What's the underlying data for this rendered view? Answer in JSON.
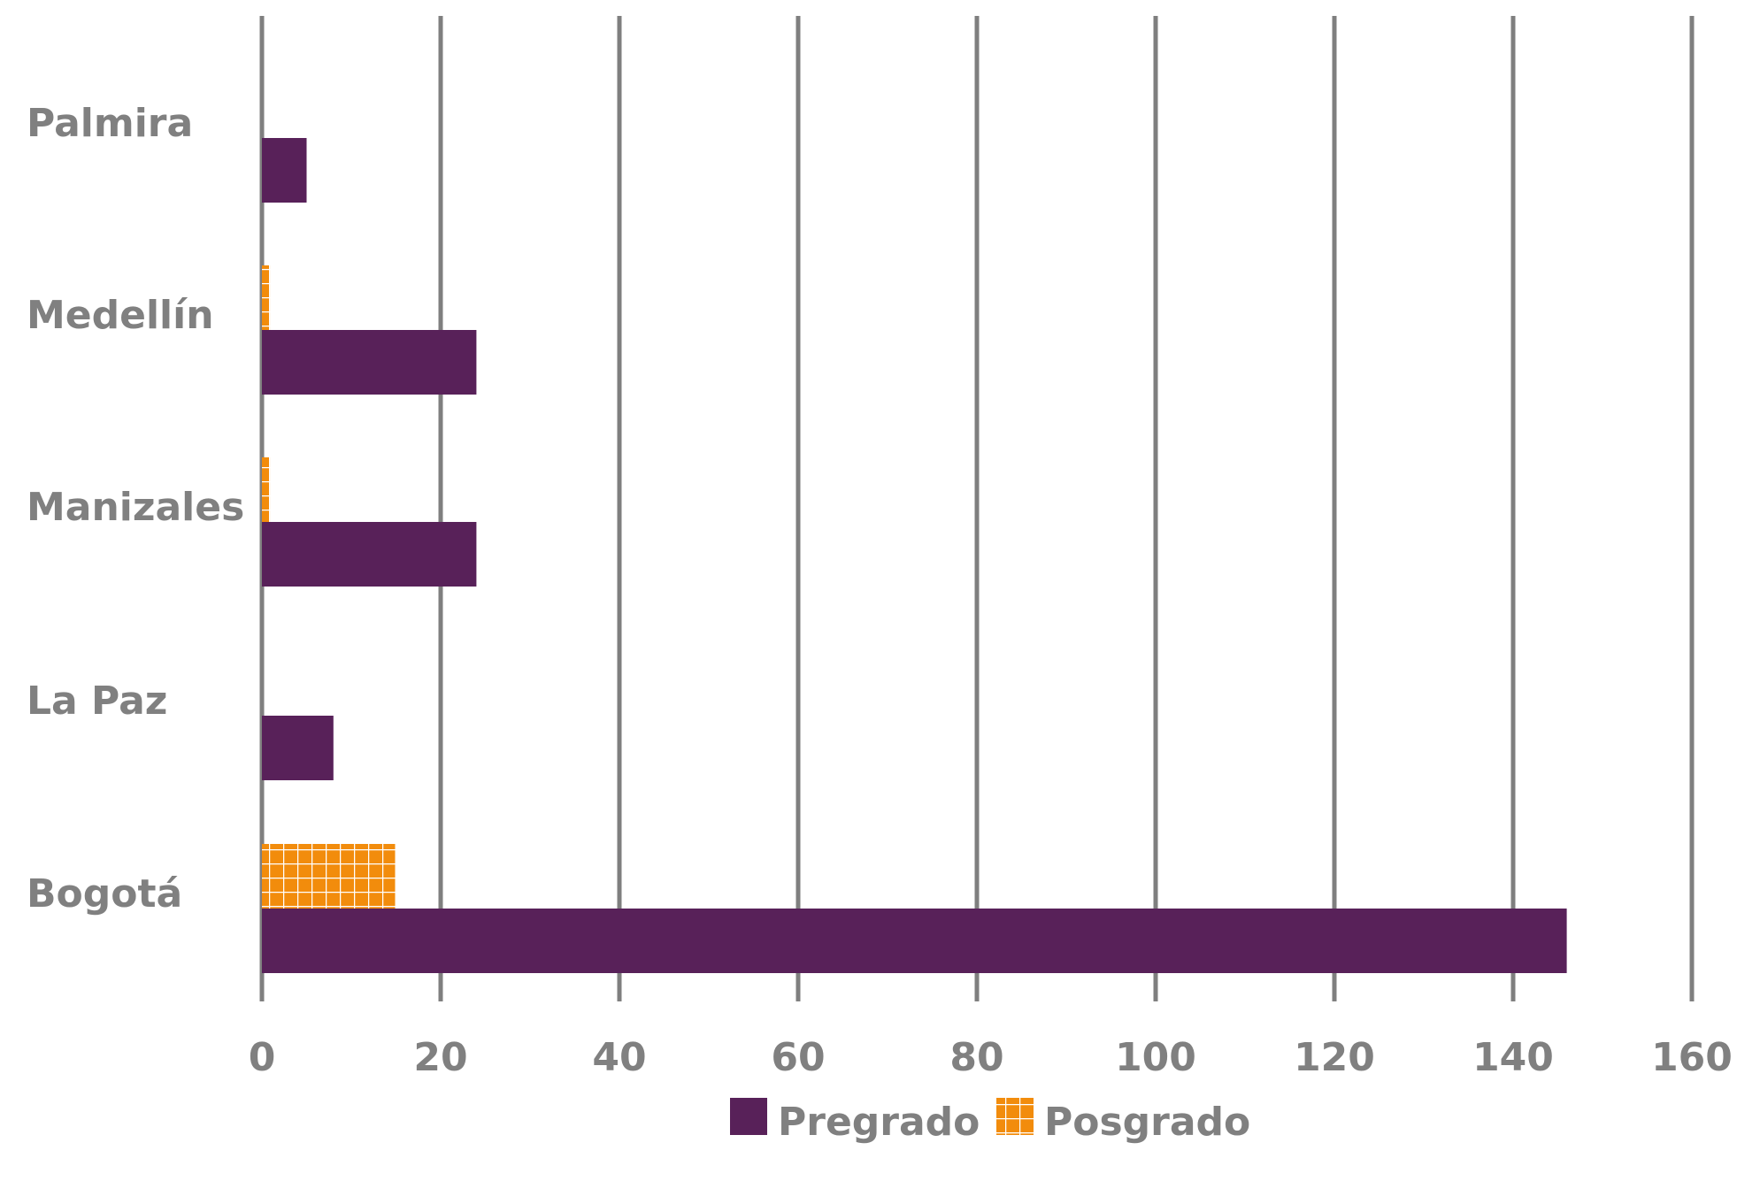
{
  "chart_data": {
    "type": "bar",
    "orientation": "horizontal",
    "title": "",
    "xlabel": "",
    "ylabel": "",
    "categories": [
      "Bogotá",
      "La Paz",
      "Manizales",
      "Medellín",
      "Palmira"
    ],
    "series": [
      {
        "name": "Pregrado",
        "values": [
          146,
          8,
          24,
          24,
          5
        ],
        "color": "#582159",
        "pattern": "solid"
      },
      {
        "name": "Posgrado",
        "values": [
          15,
          0,
          1,
          1,
          0
        ],
        "color": "#F28C0C",
        "pattern": "grid"
      }
    ],
    "xlim": [
      0,
      160
    ],
    "xticks": [
      "0",
      "20",
      "40",
      "60",
      "80",
      "100",
      "120",
      "140",
      "160"
    ],
    "grid": "vertical",
    "legend_position": "bottom-center"
  },
  "colors": {
    "grid": "#7f7f7f",
    "text": "#808080"
  }
}
